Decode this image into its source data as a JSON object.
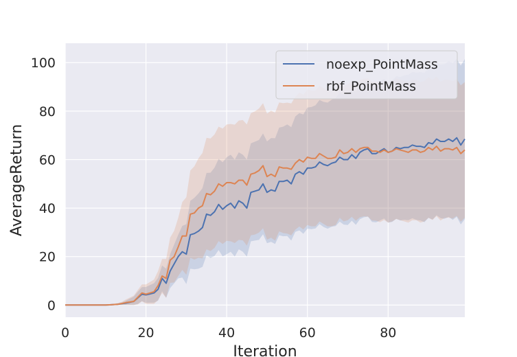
{
  "chart_data": {
    "type": "line",
    "title": "",
    "xlabel": "Iteration",
    "ylabel": "AverageReturn",
    "xlim": [
      0,
      99
    ],
    "ylim": [
      -5,
      108
    ],
    "xticks": [
      0,
      20,
      40,
      60,
      80
    ],
    "yticks": [
      0,
      20,
      40,
      60,
      80,
      100
    ],
    "grid": true,
    "legend_position": "top-right",
    "colors": {
      "plot_bg": "#eaeaf2",
      "grid": "#ffffff"
    },
    "series": [
      {
        "name": "noexp_PointMass",
        "color": "#4c72b0",
        "anchors": [
          [
            0,
            0
          ],
          [
            10,
            0
          ],
          [
            13,
            0.3
          ],
          [
            15,
            0.8
          ],
          [
            17,
            1.5
          ],
          [
            19,
            4.5
          ],
          [
            20,
            4.2
          ],
          [
            22,
            5
          ],
          [
            23,
            6.5
          ],
          [
            24,
            11
          ],
          [
            25,
            9
          ],
          [
            26,
            14
          ],
          [
            27,
            17
          ],
          [
            28,
            20
          ],
          [
            29,
            22
          ],
          [
            30,
            21
          ],
          [
            31,
            29
          ],
          [
            32,
            29.5
          ],
          [
            33,
            30.5
          ],
          [
            34,
            32
          ],
          [
            35,
            37.5
          ],
          [
            36,
            37
          ],
          [
            37,
            38.5
          ],
          [
            38,
            41.5
          ],
          [
            39,
            39.5
          ],
          [
            40,
            41
          ],
          [
            41,
            42
          ],
          [
            42,
            40
          ],
          [
            43,
            43
          ],
          [
            44,
            42
          ],
          [
            45,
            40
          ],
          [
            46,
            46.5
          ],
          [
            47,
            47
          ],
          [
            48,
            47.5
          ],
          [
            49,
            50
          ],
          [
            50,
            46.5
          ],
          [
            51,
            47.5
          ],
          [
            52,
            47
          ],
          [
            53,
            51
          ],
          [
            54,
            51
          ],
          [
            55,
            51.5
          ],
          [
            56,
            50
          ],
          [
            57,
            54
          ],
          [
            58,
            55
          ],
          [
            59,
            54
          ],
          [
            60,
            56.5
          ],
          [
            61,
            56.5
          ],
          [
            62,
            57
          ],
          [
            63,
            59
          ],
          [
            64,
            58
          ],
          [
            65,
            57.5
          ],
          [
            66,
            58.5
          ],
          [
            67,
            59
          ],
          [
            68,
            61
          ],
          [
            69,
            60
          ],
          [
            70,
            60
          ],
          [
            71,
            62
          ],
          [
            72,
            60.5
          ],
          [
            73,
            63
          ],
          [
            74,
            64
          ],
          [
            75,
            64.5
          ],
          [
            76,
            62.5
          ],
          [
            77,
            62.5
          ],
          [
            78,
            63.5
          ],
          [
            79,
            64.5
          ],
          [
            80,
            63
          ],
          [
            81,
            63.5
          ],
          [
            82,
            65
          ],
          [
            83,
            64.5
          ],
          [
            84,
            65
          ],
          [
            85,
            65
          ],
          [
            86,
            66
          ],
          [
            87,
            65.5
          ],
          [
            88,
            65.5
          ],
          [
            89,
            65
          ],
          [
            90,
            67
          ],
          [
            91,
            66.5
          ],
          [
            92,
            68.5
          ],
          [
            93,
            67.5
          ],
          [
            94,
            67.5
          ],
          [
            95,
            68.5
          ],
          [
            96,
            67.5
          ],
          [
            97,
            69
          ],
          [
            98,
            66
          ],
          [
            99,
            68.5
          ]
        ],
        "band_width": [
          [
            0,
            0
          ],
          [
            10,
            0
          ],
          [
            14,
            0.5
          ],
          [
            18,
            2.5
          ],
          [
            22,
            4
          ],
          [
            25,
            6
          ],
          [
            28,
            9
          ],
          [
            31,
            14
          ],
          [
            35,
            17
          ],
          [
            40,
            20
          ],
          [
            45,
            20
          ],
          [
            50,
            21
          ],
          [
            55,
            23
          ],
          [
            60,
            25
          ],
          [
            70,
            27
          ],
          [
            80,
            29
          ],
          [
            90,
            31
          ],
          [
            99,
            33
          ]
        ]
      },
      {
        "name": "rbf_PointMass",
        "color": "#dd8452",
        "anchors": [
          [
            0,
            0
          ],
          [
            10,
            0
          ],
          [
            13,
            0.3
          ],
          [
            15,
            1
          ],
          [
            17,
            1.5
          ],
          [
            19,
            5
          ],
          [
            20,
            4.5
          ],
          [
            22,
            5.5
          ],
          [
            23,
            8
          ],
          [
            24,
            12
          ],
          [
            25,
            11
          ],
          [
            26,
            18.5
          ],
          [
            27,
            20
          ],
          [
            28,
            24
          ],
          [
            29,
            28.5
          ],
          [
            30,
            28.5
          ],
          [
            31,
            37.5
          ],
          [
            32,
            38
          ],
          [
            33,
            40
          ],
          [
            34,
            41
          ],
          [
            35,
            46
          ],
          [
            36,
            45.5
          ],
          [
            37,
            47
          ],
          [
            38,
            50
          ],
          [
            39,
            49
          ],
          [
            40,
            50.5
          ],
          [
            41,
            50.5
          ],
          [
            42,
            50
          ],
          [
            43,
            51.5
          ],
          [
            44,
            51.5
          ],
          [
            45,
            49.5
          ],
          [
            46,
            54
          ],
          [
            47,
            54.5
          ],
          [
            48,
            55.5
          ],
          [
            49,
            57.5
          ],
          [
            50,
            53
          ],
          [
            51,
            54
          ],
          [
            52,
            53
          ],
          [
            53,
            57
          ],
          [
            54,
            56.5
          ],
          [
            55,
            56.5
          ],
          [
            56,
            56
          ],
          [
            57,
            58.5
          ],
          [
            58,
            60
          ],
          [
            59,
            59
          ],
          [
            60,
            61
          ],
          [
            61,
            60.5
          ],
          [
            62,
            60.5
          ],
          [
            63,
            62.5
          ],
          [
            64,
            61.5
          ],
          [
            65,
            60.5
          ],
          [
            66,
            60.5
          ],
          [
            67,
            61
          ],
          [
            68,
            64
          ],
          [
            69,
            62.5
          ],
          [
            70,
            63
          ],
          [
            71,
            64.5
          ],
          [
            72,
            63
          ],
          [
            73,
            64.5
          ],
          [
            74,
            65
          ],
          [
            75,
            65
          ],
          [
            76,
            63.5
          ],
          [
            77,
            63.5
          ],
          [
            78,
            63
          ],
          [
            79,
            64
          ],
          [
            80,
            63
          ],
          [
            81,
            63.5
          ],
          [
            82,
            64.5
          ],
          [
            83,
            64
          ],
          [
            84,
            63.5
          ],
          [
            85,
            63
          ],
          [
            86,
            64
          ],
          [
            87,
            64
          ],
          [
            88,
            63
          ],
          [
            89,
            63.5
          ],
          [
            90,
            65
          ],
          [
            91,
            64
          ],
          [
            92,
            65.5
          ],
          [
            93,
            63.5
          ],
          [
            94,
            64.5
          ],
          [
            95,
            64.5
          ],
          [
            96,
            64
          ],
          [
            97,
            65
          ],
          [
            98,
            62.5
          ],
          [
            99,
            64
          ]
        ],
        "band_width": [
          [
            0,
            0
          ],
          [
            10,
            0
          ],
          [
            14,
            0.7
          ],
          [
            18,
            3
          ],
          [
            22,
            5
          ],
          [
            25,
            8
          ],
          [
            28,
            12
          ],
          [
            31,
            18
          ],
          [
            35,
            23
          ],
          [
            40,
            24
          ],
          [
            45,
            25
          ],
          [
            50,
            26
          ],
          [
            55,
            27
          ],
          [
            60,
            28
          ],
          [
            70,
            28
          ],
          [
            80,
            29
          ],
          [
            90,
            29
          ],
          [
            99,
            28
          ]
        ]
      }
    ]
  }
}
